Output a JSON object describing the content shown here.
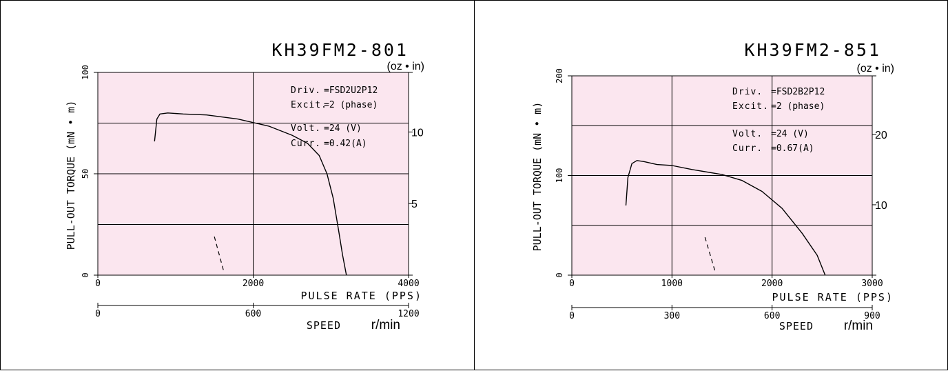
{
  "colors": {
    "plot_bg": "#fbe6ef",
    "line": "#000000",
    "border": "#000000"
  },
  "chart_data": [
    {
      "type": "line",
      "title": "KH39FM2-801",
      "ylabel": "PULL-OUT  TORQUE  (mN • m)",
      "ylabel_secondary": "(oz • in)",
      "xlabel": "PULSE RATE  (PPS)",
      "xlabel_secondary": "SPEED  r/min",
      "xlim": [
        0,
        4000
      ],
      "ylim": [
        0,
        100
      ],
      "x_ticks": [
        "0",
        "2000",
        "4000"
      ],
      "y_ticks": [
        "0",
        "50",
        "100"
      ],
      "y2_ticks": [
        "5",
        "10"
      ],
      "speed_ticks": [
        "0",
        "600",
        "1200"
      ],
      "speed_range": [
        0,
        1200
      ],
      "y2_range": [
        0,
        14.16
      ],
      "grid": true,
      "annotations": {
        "driv_key": "Driv.",
        "driv_val": "=FSD2U2P12",
        "excit_key": "Excit.",
        "excit_val": "=2  (phase)",
        "volt_key": "Volt.",
        "volt_val": "=24  (V)",
        "curr_key": "Curr.",
        "curr_val": "=0.42(A)"
      },
      "series": [
        {
          "x": [
            730,
            760,
            800,
            900,
            1100,
            1400,
            1800,
            2200,
            2500,
            2700,
            2850,
            2950,
            3030,
            3100,
            3150,
            3200
          ],
          "y": [
            66,
            77,
            79.5,
            80,
            79.5,
            79,
            77,
            73.5,
            69,
            65,
            59,
            50,
            38,
            22,
            10,
            0
          ]
        }
      ],
      "dashed": {
        "x": [
          1500,
          1620
        ],
        "y": [
          19,
          2
        ]
      }
    },
    {
      "type": "line",
      "title": "KH39FM2-851",
      "ylabel": "PULL-OUT  TORQUE  (mN • m)",
      "ylabel_secondary": "(oz • in)",
      "xlabel": "PULSE RATE  (PPS)",
      "xlabel_secondary": "SPEED  r/min",
      "xlim": [
        0,
        3000
      ],
      "ylim": [
        0,
        200
      ],
      "x_ticks": [
        "0",
        "1000",
        "2000",
        "3000"
      ],
      "y_ticks": [
        "0",
        "100",
        "200"
      ],
      "y2_ticks": [
        "10",
        "20"
      ],
      "speed_ticks": [
        "0",
        "300",
        "600",
        "900"
      ],
      "speed_range": [
        0,
        900
      ],
      "y2_range": [
        0,
        28.32
      ],
      "grid": true,
      "annotations": {
        "driv_key": "Driv.",
        "driv_val": "=FSD2B2P12",
        "excit_key": "Excit.",
        "excit_val": "=2  (phase)",
        "volt_key": "Volt.",
        "volt_val": "=24  (V)",
        "curr_key": "Curr.",
        "curr_val": "=0.67(A)"
      },
      "series": [
        {
          "x": [
            540,
            560,
            600,
            650,
            720,
            850,
            1000,
            1200,
            1500,
            1700,
            1900,
            2100,
            2300,
            2450,
            2530
          ],
          "y": [
            70,
            98,
            112,
            115,
            114,
            111,
            110,
            106,
            101,
            95,
            84,
            67,
            42,
            20,
            0
          ]
        }
      ],
      "dashed": {
        "x": [
          1330,
          1430
        ],
        "y": [
          38,
          4
        ]
      }
    }
  ]
}
